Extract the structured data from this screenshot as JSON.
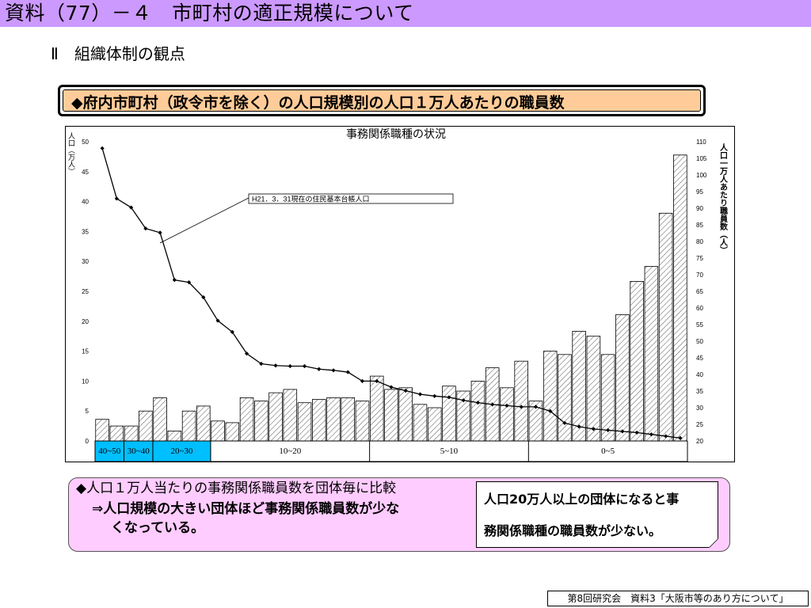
{
  "header": {
    "title": "資料（77）－４　市町村の適正規模について"
  },
  "section": {
    "heading": "Ⅱ　組織体制の観点"
  },
  "banner": {
    "text": "◆府内市町村（政令市を除く）の人口規模別の人口１万人あたりの職員数"
  },
  "chart_data": {
    "type": "bar",
    "title": "事務関係職種の状況",
    "left_axis_label": "人口（万人）",
    "right_axis_label": "人口一万人あたり職員数（人）",
    "left_ylim": [
      0,
      50
    ],
    "left_ticks": [
      "0",
      "5",
      "10",
      "15",
      "20",
      "25",
      "30",
      "35",
      "40",
      "45",
      "50"
    ],
    "right_ylim": [
      20,
      110
    ],
    "right_ticks": [
      "20",
      "25",
      "30",
      "35",
      "40",
      "45",
      "50",
      "55",
      "60",
      "65",
      "70",
      "75",
      "80",
      "85",
      "90",
      "95",
      "100",
      "105",
      "110"
    ],
    "bar_series": {
      "axis": "right",
      "values": [
        26.5,
        24.5,
        24.5,
        29,
        33,
        23,
        29,
        30.5,
        26,
        25.5,
        33,
        32,
        34.5,
        35.5,
        31.5,
        32.5,
        33,
        33,
        32,
        39.5,
        35.5,
        36,
        31,
        30,
        36.5,
        35,
        38,
        42,
        36,
        44,
        32,
        47,
        46,
        53,
        51.5,
        46,
        58,
        68,
        72.5,
        88.5,
        106
      ]
    },
    "line_series": {
      "name": "H21．3．31現在の住民基本台帳人口",
      "axis": "left",
      "values": [
        48.9,
        40.5,
        39.0,
        35.5,
        34.8,
        26.9,
        26.5,
        24.0,
        20.1,
        18.2,
        14.6,
        12.9,
        12.6,
        12.5,
        12.5,
        12.0,
        11.8,
        11.5,
        10.0,
        10.0,
        9.0,
        8.4,
        7.8,
        7.5,
        7.3,
        6.8,
        6.4,
        6.1,
        5.9,
        5.7,
        5.7,
        5.0,
        3.0,
        2.4,
        2.0,
        1.8,
        1.6,
        1.4,
        1.1,
        0.8,
        0.5
      ]
    },
    "groups": [
      {
        "label": "40~50",
        "highlight": true
      },
      {
        "label": "30~40",
        "highlight": true
      },
      {
        "label": "20~30",
        "highlight": true
      },
      {
        "label": "10~20",
        "highlight": false
      },
      {
        "label": "5~10",
        "highlight": false
      },
      {
        "label": "0~5",
        "highlight": false
      }
    ],
    "colors": {
      "highlight_fill": "#00bfff",
      "bar_stroke": "#000000",
      "hatch": "#555555",
      "line": "#000000"
    }
  },
  "notes": {
    "line1": "◆人口１万人当たりの事務関係職員数を団体毎に比較",
    "line2": "⇒人口規模の大きい団体ほど事務関係職員数が少な",
    "line3": "くなっている。"
  },
  "callout": {
    "line1": "人口20万人以上の団体になると事",
    "line2": "務関係職種の職員数が少ない。"
  },
  "footer": {
    "text": "第8回研究会　資料3「大阪市等のあり方について」"
  }
}
